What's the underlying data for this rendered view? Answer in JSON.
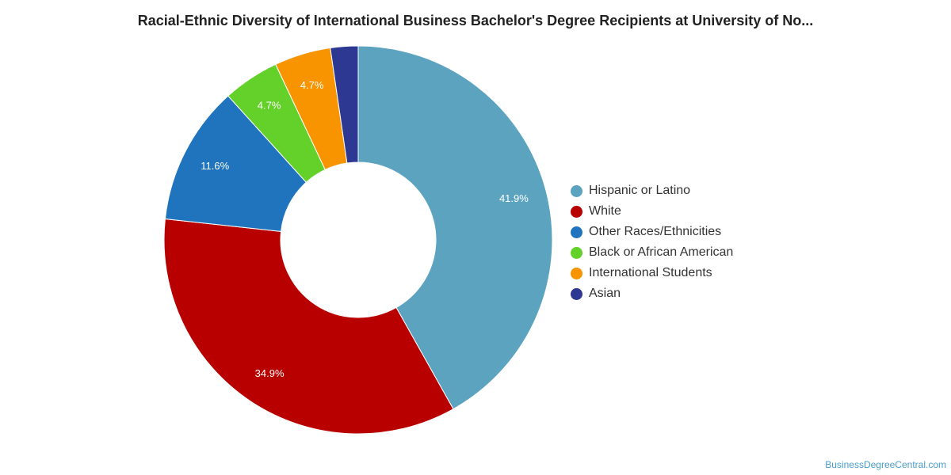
{
  "chart_data": {
    "type": "pie",
    "title": "Racial-Ethnic Diversity of International Business Bachelor's Degree Recipients at University of No...",
    "donut": true,
    "legend_position": "right",
    "series": [
      {
        "name": "Hispanic or Latino",
        "value": 41.9,
        "label": "41.9%",
        "color": "#5ba3bf"
      },
      {
        "name": "White",
        "value": 34.9,
        "label": "34.9%",
        "color": "#b80000"
      },
      {
        "name": "Other Races/Ethnicities",
        "value": 11.6,
        "label": "11.6%",
        "color": "#1f74bd"
      },
      {
        "name": "Black or African American",
        "value": 4.7,
        "label": "4.7%",
        "color": "#63d12a"
      },
      {
        "name": "International Students",
        "value": 4.7,
        "label": "4.7%",
        "color": "#f79400"
      },
      {
        "name": "Asian",
        "value": 2.3,
        "label": "",
        "color": "#2d3892"
      }
    ]
  },
  "credit": "BusinessDegreeCentral.com"
}
